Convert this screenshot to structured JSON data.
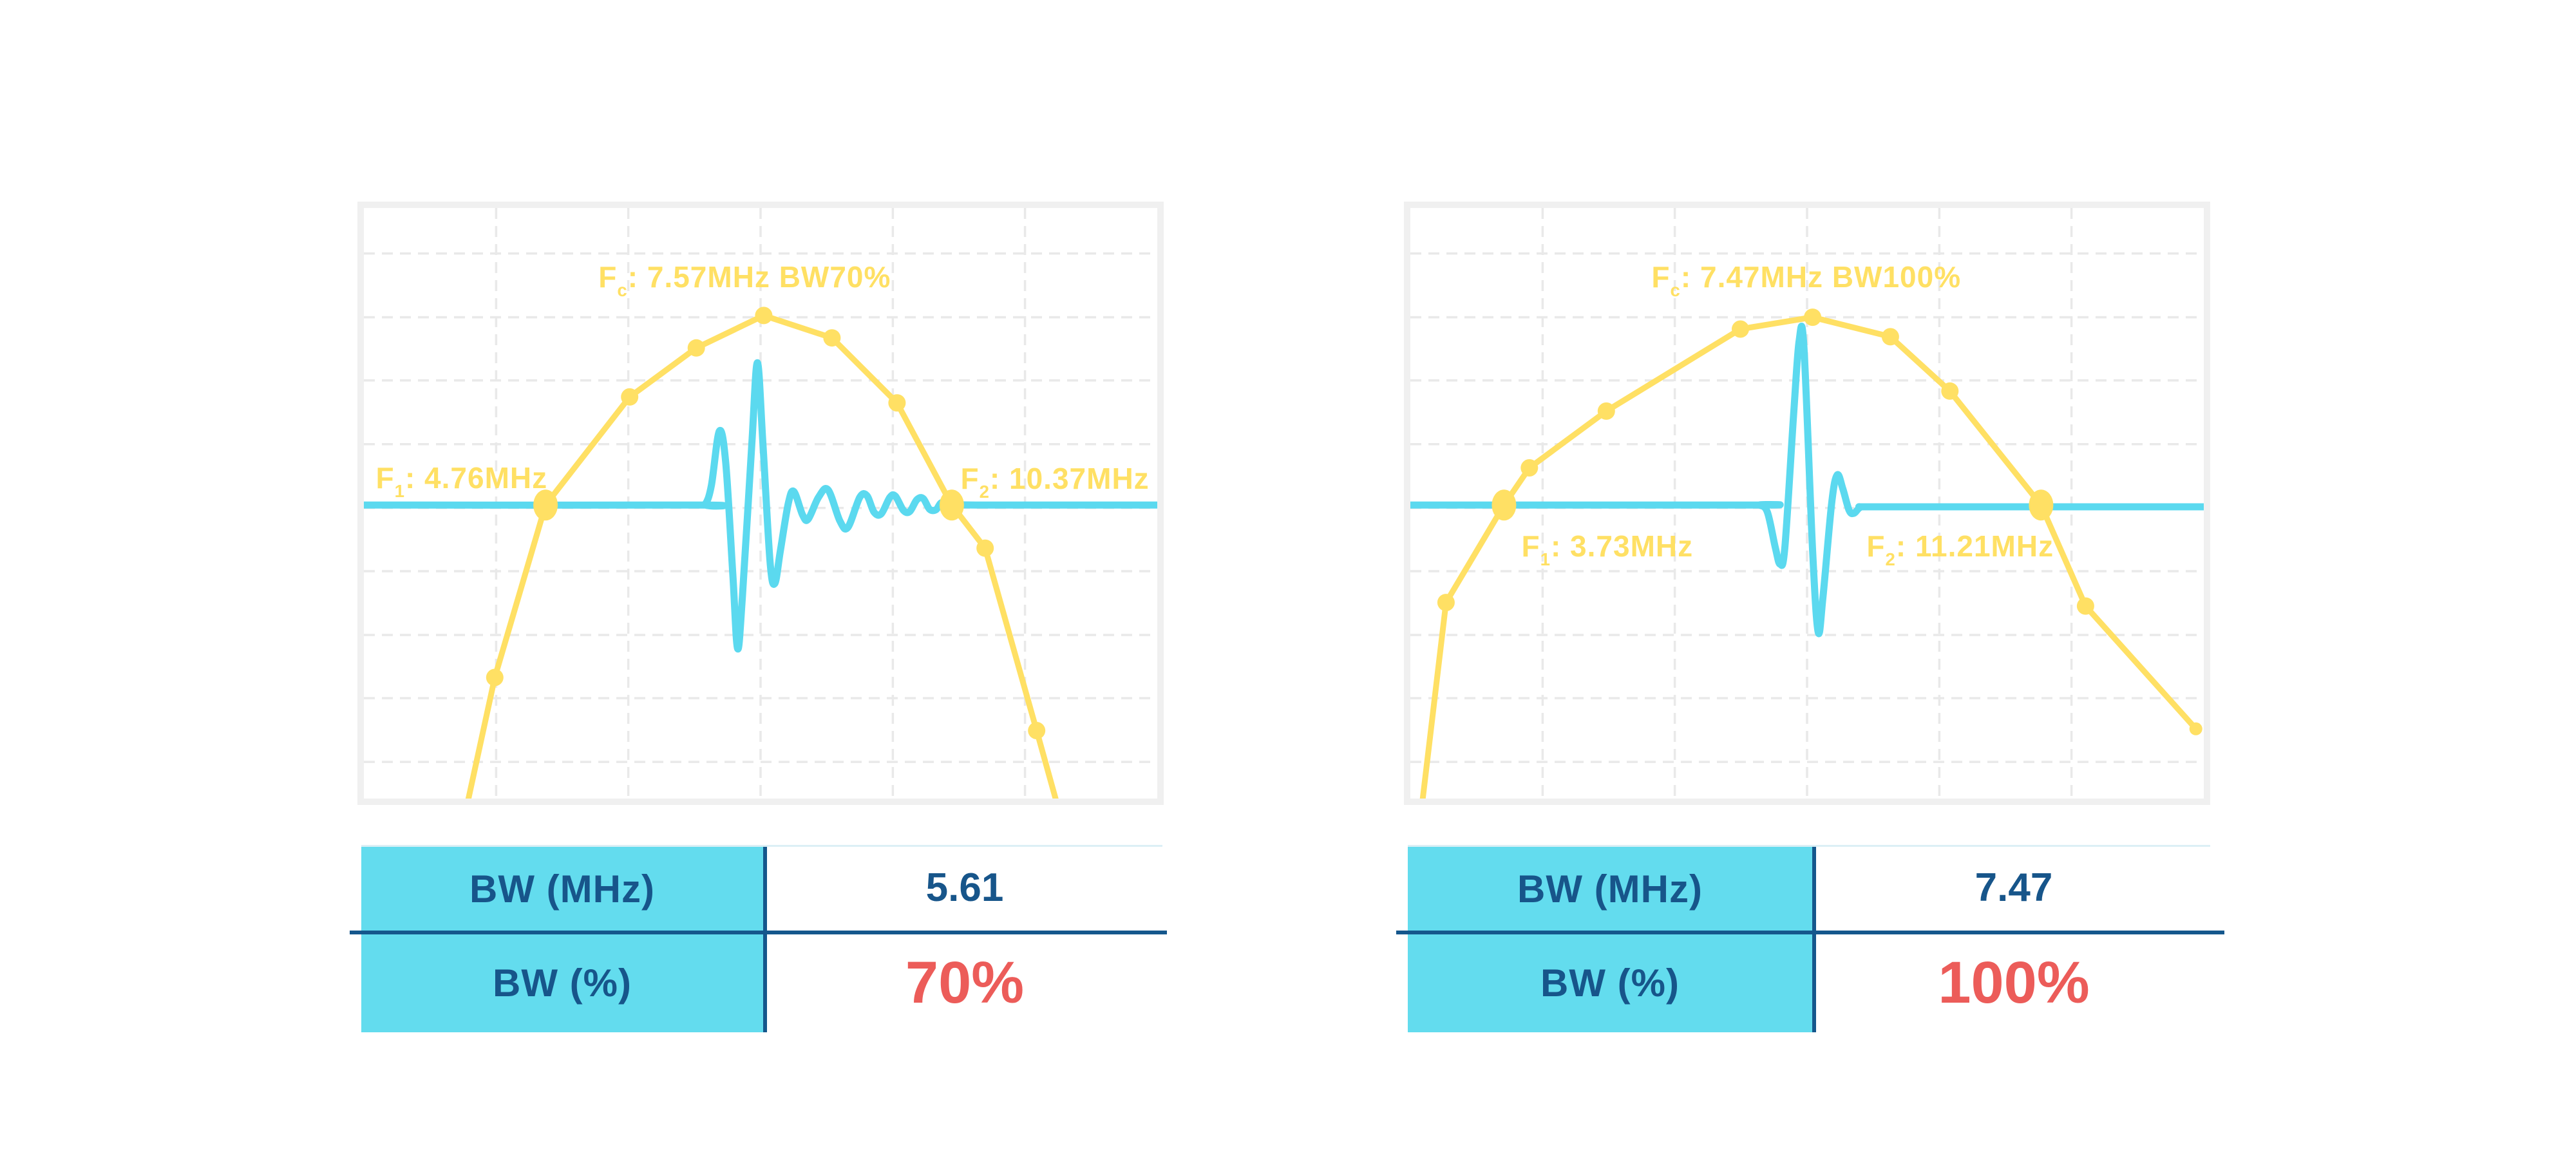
{
  "colors": {
    "yellow": "#FFE064",
    "cyan": "#5BD9EF",
    "navy_text": "#17558A",
    "navy_line": "#15578C",
    "red": "#EC5C59",
    "frame_gray": "#f0f0f0",
    "grid_gray": "#e9e9e9",
    "table_cyan": "#63DCEE",
    "table_top_line": "#dceff5"
  },
  "grid": {
    "v_fracs": [
      0.1667,
      0.3333,
      0.5,
      0.6667,
      0.8333
    ],
    "h_fracs": [
      0.077,
      0.185,
      0.292,
      0.4,
      0.508,
      0.615,
      0.723,
      0.83,
      0.938
    ]
  },
  "charts": [
    {
      "title": {
        "f": "F",
        "sub": "c",
        "rest": ": 7.57MHz BW70%"
      },
      "f1_label": {
        "f": "F",
        "sub": "1",
        "rest": ": 4.76MHz"
      },
      "f2_label": {
        "f": "F",
        "sub": "2",
        "rest": ": 10.37MHz"
      }
    },
    {
      "title": {
        "f": "F",
        "sub": "c",
        "rest": ": 7.47MHz BW100%"
      },
      "f1_label": {
        "f": "F",
        "sub": "1",
        "rest": ": 3.73MHz"
      },
      "f2_label": {
        "f": "F",
        "sub": "2",
        "rest": ": 11.21MHz"
      }
    }
  ],
  "tables": [
    {
      "rows": [
        {
          "label": "BW (MHz)",
          "value": "5.61"
        },
        {
          "label": "BW (%)",
          "value": "70%"
        }
      ]
    },
    {
      "rows": [
        {
          "label": "BW (MHz)",
          "value": "7.47"
        },
        {
          "label": "BW (%)",
          "value": "100%"
        }
      ]
    }
  ],
  "chart_data": [
    {
      "type": "line",
      "title": "Fc: 7.57MHz BW70%",
      "center_frequency_mhz": 7.57,
      "f1_mhz": 4.76,
      "f2_mhz": 10.37,
      "bandwidth_mhz": 5.61,
      "bandwidth_pct": 70,
      "annotations": [
        "Fc: 7.57MHz BW70%",
        "F1: 4.76MHz",
        "F2: 10.37MHz"
      ],
      "legend": "none",
      "grid": "dashed-light",
      "series": [
        {
          "name": "spectrum",
          "style": "polyline",
          "color_key": "yellow",
          "width": 9,
          "points_norm": [
            [
              0.127,
              1.03
            ],
            [
              0.165,
              0.795
            ],
            [
              0.229,
              0.503
            ],
            [
              0.335,
              0.32
            ],
            [
              0.419,
              0.237
            ],
            [
              0.504,
              0.182
            ],
            [
              0.59,
              0.22
            ],
            [
              0.672,
              0.33
            ],
            [
              0.741,
              0.503
            ],
            [
              0.783,
              0.576
            ],
            [
              0.848,
              0.885
            ],
            [
              0.878,
              1.03
            ]
          ],
          "markers": [
            [
              0.165,
              0.795,
              "med"
            ],
            [
              0.229,
              0.503,
              "big"
            ],
            [
              0.335,
              0.32,
              "med"
            ],
            [
              0.419,
              0.237,
              "med"
            ],
            [
              0.504,
              0.182,
              "med"
            ],
            [
              0.59,
              0.22,
              "med"
            ],
            [
              0.672,
              0.33,
              "med"
            ],
            [
              0.741,
              0.503,
              "big"
            ],
            [
              0.783,
              0.576,
              "med"
            ],
            [
              0.848,
              0.885,
              "med"
            ]
          ]
        },
        {
          "name": "pulse-echo-waveform",
          "style": "smooth",
          "color_key": "cyan",
          "width": 11,
          "points_norm": [
            [
              0,
              0.503
            ],
            [
              0.42,
              0.503
            ],
            [
              0.43,
              0.502
            ],
            [
              0.438,
              0.47
            ],
            [
              0.448,
              0.378
            ],
            [
              0.456,
              0.43
            ],
            [
              0.465,
              0.62
            ],
            [
              0.471,
              0.746
            ],
            [
              0.477,
              0.66
            ],
            [
              0.489,
              0.4
            ],
            [
              0.496,
              0.262
            ],
            [
              0.503,
              0.4
            ],
            [
              0.512,
              0.6
            ],
            [
              0.518,
              0.636
            ],
            [
              0.525,
              0.58
            ],
            [
              0.535,
              0.5
            ],
            [
              0.542,
              0.48
            ],
            [
              0.553,
              0.52
            ],
            [
              0.56,
              0.527
            ],
            [
              0.573,
              0.49
            ],
            [
              0.585,
              0.477
            ],
            [
              0.6,
              0.53
            ],
            [
              0.61,
              0.541
            ],
            [
              0.625,
              0.49
            ],
            [
              0.634,
              0.487
            ],
            [
              0.643,
              0.515
            ],
            [
              0.652,
              0.518
            ],
            [
              0.663,
              0.49
            ],
            [
              0.67,
              0.488
            ],
            [
              0.68,
              0.512
            ],
            [
              0.688,
              0.514
            ],
            [
              0.697,
              0.494
            ],
            [
              0.705,
              0.492
            ],
            [
              0.713,
              0.51
            ],
            [
              0.721,
              0.511
            ],
            [
              0.728,
              0.499
            ],
            [
              0.735,
              0.507
            ],
            [
              0.741,
              0.503
            ],
            [
              0.8,
              0.503
            ],
            [
              1,
              0.503
            ]
          ],
          "markers": []
        }
      ]
    },
    {
      "type": "line",
      "title": "Fc: 7.47MHz BW100%",
      "center_frequency_mhz": 7.47,
      "f1_mhz": 3.73,
      "f2_mhz": 11.21,
      "bandwidth_mhz": 7.47,
      "bandwidth_pct": 100,
      "annotations": [
        "Fc: 7.47MHz BW100%",
        "F1: 3.73MHz",
        "F2: 11.21MHz"
      ],
      "legend": "none",
      "grid": "dashed-light",
      "series": [
        {
          "name": "spectrum",
          "style": "polyline",
          "color_key": "yellow",
          "width": 9,
          "points_norm": [
            [
              0.013,
              1.03
            ],
            [
              0.045,
              0.668
            ],
            [
              0.118,
              0.503
            ],
            [
              0.15,
              0.44
            ],
            [
              0.247,
              0.344
            ],
            [
              0.416,
              0.205
            ],
            [
              0.507,
              0.185
            ],
            [
              0.605,
              0.218
            ],
            [
              0.68,
              0.31
            ],
            [
              0.795,
              0.503
            ],
            [
              0.851,
              0.674
            ],
            [
              0.99,
              0.882
            ]
          ],
          "markers": [
            [
              0.045,
              0.668,
              "med"
            ],
            [
              0.118,
              0.503,
              "big"
            ],
            [
              0.15,
              0.44,
              "med"
            ],
            [
              0.247,
              0.344,
              "med"
            ],
            [
              0.416,
              0.205,
              "med"
            ],
            [
              0.507,
              0.185,
              "med"
            ],
            [
              0.605,
              0.218,
              "med"
            ],
            [
              0.68,
              0.31,
              "med"
            ],
            [
              0.795,
              0.503,
              "big"
            ],
            [
              0.851,
              0.674,
              "med"
            ],
            [
              0.99,
              0.882,
              "small"
            ]
          ]
        },
        {
          "name": "pulse-echo-waveform",
          "style": "smooth",
          "color_key": "cyan",
          "width": 11,
          "points_norm": [
            [
              0,
              0.503
            ],
            [
              0.432,
              0.503
            ],
            [
              0.44,
              0.503
            ],
            [
              0.45,
              0.515
            ],
            [
              0.46,
              0.575
            ],
            [
              0.466,
              0.603
            ],
            [
              0.472,
              0.575
            ],
            [
              0.483,
              0.35
            ],
            [
              0.49,
              0.225
            ],
            [
              0.496,
              0.235
            ],
            [
              0.507,
              0.58
            ],
            [
              0.514,
              0.718
            ],
            [
              0.52,
              0.66
            ],
            [
              0.531,
              0.5
            ],
            [
              0.538,
              0.452
            ],
            [
              0.545,
              0.475
            ],
            [
              0.553,
              0.512
            ],
            [
              0.559,
              0.517
            ],
            [
              0.567,
              0.507
            ],
            [
              0.578,
              0.506
            ],
            [
              0.7,
              0.506
            ],
            [
              1,
              0.506
            ]
          ],
          "markers": []
        }
      ]
    }
  ]
}
